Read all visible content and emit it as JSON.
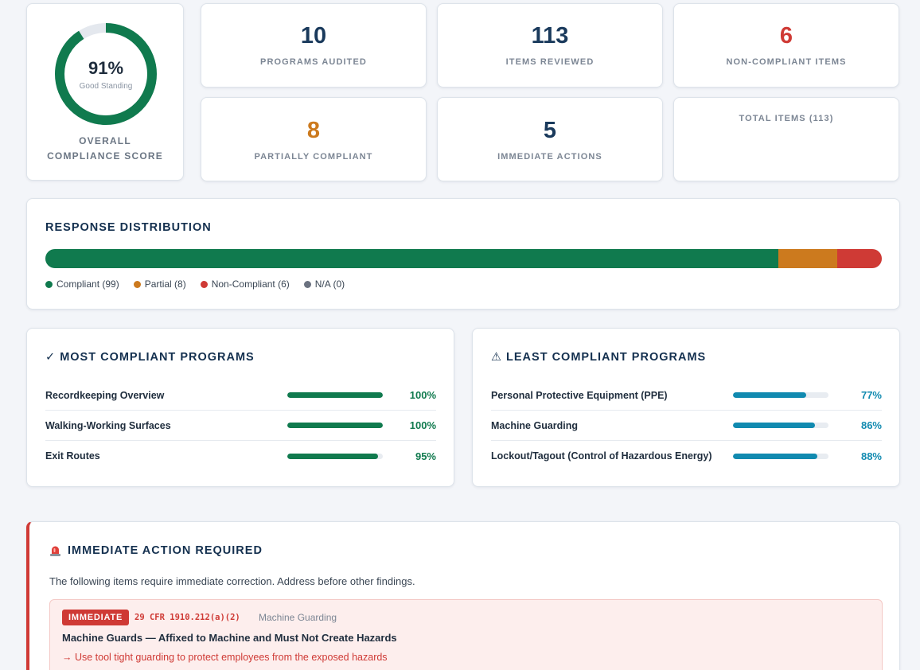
{
  "score": {
    "value": "91%",
    "percent": 91,
    "status": "Good Standing",
    "title_line1": "OVERALL",
    "title_line2": "COMPLIANCE SCORE",
    "color": "#107a4e"
  },
  "stats": {
    "programs_audited": {
      "value": "10",
      "label": "PROGRAMS AUDITED",
      "color": "#1a3a5c"
    },
    "items_reviewed": {
      "value": "113",
      "label": "ITEMS REVIEWED",
      "color": "#1a3a5c"
    },
    "non_compliant": {
      "value": "6",
      "label": "NON-COMPLIANT ITEMS",
      "color": "#cf3a35"
    },
    "partially_compliant": {
      "value": "8",
      "label": "PARTIALLY COMPLIANT",
      "color": "#cc7a1e"
    },
    "immediate_actions": {
      "value": "5",
      "label": "IMMEDIATE ACTIONS",
      "color": "#1a3a5c"
    },
    "total_items": {
      "label": "TOTAL ITEMS (113)"
    }
  },
  "distribution": {
    "title": "RESPONSE DISTRIBUTION",
    "segments": [
      {
        "name": "Compliant",
        "count": 99,
        "label": "Compliant (99)",
        "color": "#107a4e"
      },
      {
        "name": "Partial",
        "count": 8,
        "label": "Partial (8)",
        "color": "#cc7a1e"
      },
      {
        "name": "Non-Compliant",
        "count": 6,
        "label": "Non-Compliant (6)",
        "color": "#cf3a35"
      },
      {
        "name": "N/A",
        "count": 0,
        "label": "N/A (0)",
        "color": "#6b7280"
      }
    ]
  },
  "most_compliant": {
    "icon": "✓",
    "title": "MOST COMPLIANT PROGRAMS",
    "color": "#107a4e",
    "items": [
      {
        "name": "Recordkeeping Overview",
        "pct": 100,
        "pct_label": "100%"
      },
      {
        "name": "Walking-Working Surfaces",
        "pct": 100,
        "pct_label": "100%"
      },
      {
        "name": "Exit Routes",
        "pct": 95,
        "pct_label": "95%"
      }
    ]
  },
  "least_compliant": {
    "icon": "⚠",
    "title": "LEAST COMPLIANT PROGRAMS",
    "color": "#118ab0",
    "items": [
      {
        "name": "Personal Protective Equipment (PPE)",
        "pct": 77,
        "pct_label": "77%"
      },
      {
        "name": "Machine Guarding",
        "pct": 86,
        "pct_label": "86%"
      },
      {
        "name": "Lockout/Tagout (Control of Hazardous Energy)",
        "pct": 88,
        "pct_label": "88%"
      }
    ]
  },
  "immediate": {
    "title": "IMMEDIATE ACTION REQUIRED",
    "description": "The following items require immediate correction. Address before other findings.",
    "items": [
      {
        "badge": "IMMEDIATE",
        "cfr": "29 CFR 1910.212(a)(2)",
        "category": "Machine Guarding",
        "title": "Machine Guards — Affixed to Machine and Must Not Create Hazards",
        "fix": "→ Use tool tight guarding to protect employees from the exposed hazards"
      }
    ]
  }
}
